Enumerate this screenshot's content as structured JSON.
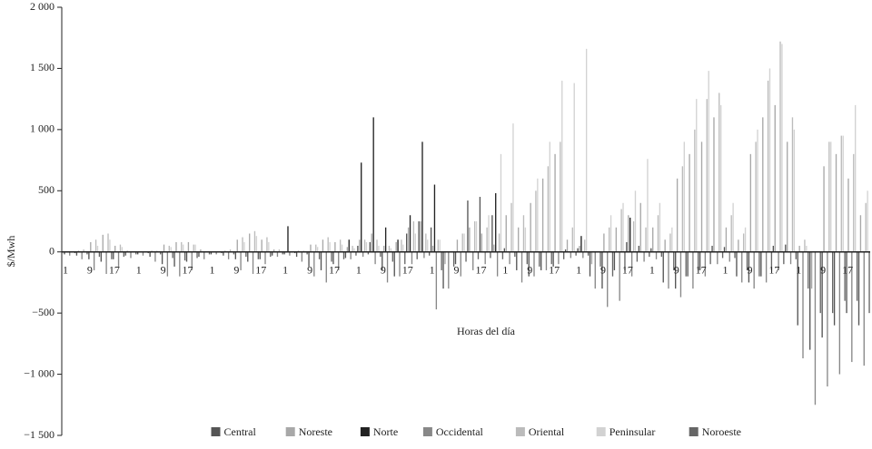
{
  "chart_data": {
    "type": "bar",
    "y_label": "$/Mwh",
    "x_label": "Horas del día",
    "ylim": [
      -1500,
      2000
    ],
    "yticks": [
      {
        "value": -1500,
        "label": "−1 500"
      },
      {
        "value": -1000,
        "label": "−1 000"
      },
      {
        "value": -500,
        "label": "−500"
      },
      0,
      500,
      {
        "value": 1000,
        "label": "1 000"
      },
      {
        "value": 1500,
        "label": "1 500"
      },
      {
        "value": 2000,
        "label": "2 000"
      }
    ],
    "categories": [
      "1",
      null,
      "9",
      null,
      "17",
      null,
      "1",
      null,
      "9",
      null,
      "17",
      null,
      "1",
      null,
      "9",
      null,
      "17",
      null,
      "1",
      null,
      "9",
      null,
      "17",
      null,
      "1",
      null,
      "9",
      null,
      "17",
      null,
      "1",
      null,
      "9",
      null,
      "17",
      null,
      "1",
      null,
      "9",
      null,
      "17",
      null,
      "1",
      null,
      "9",
      null,
      "17",
      null,
      "1",
      null,
      "9",
      null,
      "17",
      null,
      "1",
      null,
      "9",
      null,
      "17",
      null,
      "1",
      null,
      "9",
      null,
      "17",
      null
    ],
    "series": [
      {
        "name": "Central",
        "color": "#555555",
        "values": [
          -20,
          -30,
          -60,
          -80,
          -60,
          -30,
          -20,
          -40,
          -100,
          -120,
          -80,
          -40,
          -20,
          -30,
          -60,
          -80,
          -60,
          -30,
          -20,
          -40,
          -120,
          -150,
          -100,
          -50,
          50,
          80,
          -150,
          -200,
          150,
          250,
          200,
          -300,
          -100,
          420,
          450,
          300,
          30,
          -150,
          -200,
          -150,
          -120,
          20,
          30,
          -200,
          -300,
          -150,
          80,
          50,
          30,
          -250,
          -300,
          -200,
          -150,
          50,
          40,
          -200,
          -250,
          -200,
          50,
          60,
          -600,
          -800,
          -700,
          -600,
          -500,
          -600
        ]
      },
      {
        "name": "Noreste",
        "color": "#a8a8a8",
        "values": [
          0,
          10,
          80,
          140,
          50,
          10,
          0,
          10,
          60,
          80,
          80,
          20,
          0,
          10,
          100,
          150,
          100,
          20,
          0,
          10,
          60,
          100,
          80,
          40,
          100,
          150,
          50,
          80,
          200,
          250,
          50,
          -100,
          100,
          200,
          150,
          60,
          300,
          200,
          400,
          600,
          800,
          100,
          50,
          -100,
          150,
          200,
          300,
          400,
          200,
          100,
          600,
          800,
          900,
          1100,
          200,
          100,
          800,
          1100,
          1200,
          900,
          50,
          -300,
          700,
          800,
          600,
          300
        ]
      },
      {
        "name": "Norte",
        "color": "#222222",
        "values": [
          0,
          0,
          0,
          0,
          0,
          0,
          0,
          0,
          0,
          0,
          0,
          0,
          0,
          0,
          0,
          0,
          0,
          0,
          210,
          0,
          0,
          0,
          0,
          100,
          730,
          1100,
          200,
          100,
          300,
          900,
          550,
          0,
          0,
          0,
          0,
          480,
          0,
          0,
          0,
          0,
          0,
          0,
          130,
          0,
          0,
          0,
          280,
          0,
          0,
          0,
          0,
          0,
          0,
          0,
          0,
          0,
          0,
          0,
          0,
          0,
          0,
          0,
          0,
          0,
          0,
          0
        ]
      },
      {
        "name": "Occidental",
        "color": "#888888",
        "values": [
          -30,
          -60,
          -150,
          -180,
          -120,
          -50,
          -30,
          -80,
          -200,
          -200,
          -150,
          -60,
          -20,
          -60,
          -150,
          -180,
          -100,
          -40,
          -30,
          -80,
          -200,
          -250,
          -150,
          -60,
          -40,
          -100,
          -250,
          -200,
          -100,
          -50,
          -470,
          -300,
          -200,
          -150,
          -100,
          -200,
          -100,
          -250,
          -200,
          -150,
          -100,
          -50,
          -50,
          -300,
          -450,
          -400,
          -200,
          -80,
          -60,
          -300,
          -370,
          -300,
          -200,
          -100,
          -80,
          -250,
          -300,
          -250,
          -150,
          -100,
          -870,
          -1250,
          -1100,
          -1000,
          -900,
          -930
        ]
      },
      {
        "name": "Oriental",
        "color": "#bbbbbb",
        "values": [
          0,
          20,
          100,
          150,
          60,
          0,
          0,
          10,
          50,
          80,
          60,
          0,
          0,
          20,
          120,
          170,
          120,
          20,
          0,
          10,
          60,
          120,
          100,
          50,
          100,
          100,
          50,
          100,
          250,
          150,
          100,
          0,
          150,
          250,
          200,
          150,
          400,
          300,
          500,
          700,
          900,
          200,
          100,
          0,
          200,
          350,
          250,
          200,
          300,
          150,
          700,
          1000,
          1250,
          1300,
          300,
          150,
          900,
          1400,
          1720,
          1100,
          100,
          0,
          900,
          950,
          800,
          400
        ]
      },
      {
        "name": "Peninsular",
        "color": "#d2d2d2",
        "values": [
          0,
          0,
          50,
          100,
          40,
          0,
          0,
          0,
          40,
          60,
          60,
          0,
          0,
          0,
          80,
          130,
          80,
          0,
          0,
          0,
          40,
          80,
          60,
          30,
          80,
          50,
          30,
          60,
          150,
          100,
          100,
          0,
          150,
          250,
          300,
          800,
          1050,
          200,
          600,
          900,
          1400,
          1380,
          1660,
          0,
          300,
          400,
          500,
          760,
          400,
          200,
          900,
          1250,
          1480,
          1200,
          400,
          200,
          1000,
          1500,
          1700,
          1000,
          50,
          0,
          900,
          950,
          1200,
          500
        ]
      },
      {
        "name": "Noroeste",
        "color": "#666666",
        "values": [
          -10,
          -20,
          -40,
          -60,
          -40,
          -20,
          -10,
          -20,
          -50,
          -70,
          -50,
          -20,
          -10,
          -20,
          -40,
          -60,
          -40,
          -20,
          -10,
          -20,
          -60,
          -80,
          -60,
          -30,
          -20,
          -40,
          -80,
          -100,
          -60,
          -30,
          -150,
          -120,
          -80,
          -60,
          -50,
          -60,
          -40,
          -100,
          -120,
          -100,
          -60,
          -30,
          -30,
          -120,
          -200,
          -150,
          -80,
          -40,
          -40,
          -150,
          -200,
          -150,
          -100,
          -50,
          -50,
          -150,
          -200,
          -150,
          -100,
          -60,
          -300,
          -500,
          -500,
          -400,
          -400,
          -500
        ]
      }
    ]
  }
}
